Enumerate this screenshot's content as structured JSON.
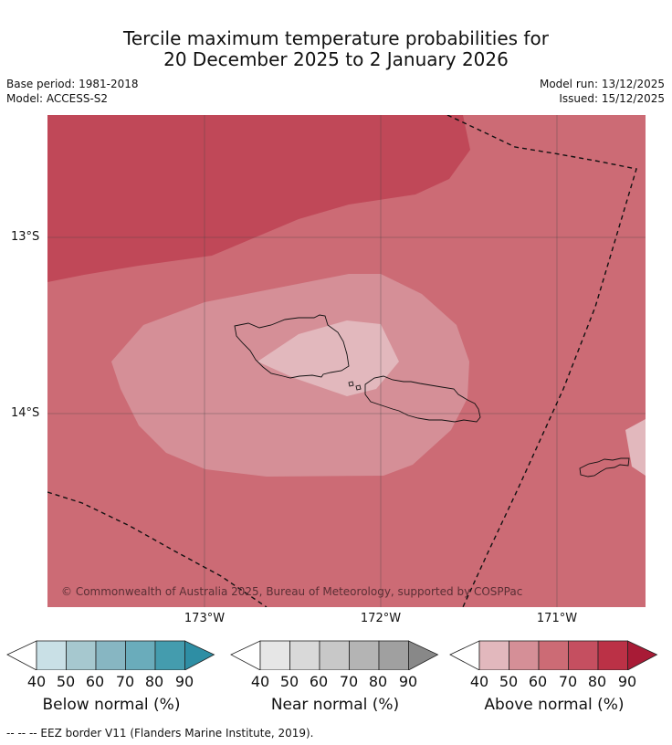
{
  "title": {
    "line1": "Tercile maximum temperature probabilities for",
    "line2": "20 December 2025 to 2 January 2026"
  },
  "meta": {
    "base_period": "Base period: 1981-2018",
    "model": "Model: ACCESS-S2",
    "model_run": "Model run: 13/12/2025",
    "issued": "Issued: 15/12/2025"
  },
  "map": {
    "copyright": "© Commonwealth of Australia 2025, Bureau of Meteorology, supported by COSPPac",
    "lat_labels": [
      "13°S",
      "14°S"
    ],
    "lon_labels": [
      "173°W",
      "172°W",
      "171°W"
    ],
    "colors": {
      "above_90": "#c04858",
      "above_70": "#cc6b75",
      "above_50": "#d58f97",
      "above_40": "#e2b8bd",
      "coastline": "#111111",
      "eez": "#111111"
    }
  },
  "legends": [
    {
      "title": "Below normal (%)",
      "ticks": [
        "40",
        "50",
        "60",
        "70",
        "80",
        "90"
      ],
      "colors": [
        "#ffffff",
        "#c9e0e6",
        "#a6c8cf",
        "#87b6c2",
        "#6aacbb",
        "#449cae",
        "#2e8ea4"
      ]
    },
    {
      "title": "Near normal (%)",
      "ticks": [
        "40",
        "50",
        "60",
        "70",
        "80",
        "90"
      ],
      "colors": [
        "#ffffff",
        "#e6e6e6",
        "#d9d9d9",
        "#c8c8c8",
        "#b4b4b4",
        "#a0a0a0",
        "#888888"
      ]
    },
    {
      "title": "Above normal (%)",
      "ticks": [
        "40",
        "50",
        "60",
        "70",
        "80",
        "90"
      ],
      "colors": [
        "#ffffff",
        "#e2b8bd",
        "#d58f97",
        "#cc6b75",
        "#c54f60",
        "#bb3146",
        "#a81b36"
      ]
    }
  ],
  "footnote": "--  --  -- EEZ border V11 (Flanders Marine Institute, 2019)."
}
